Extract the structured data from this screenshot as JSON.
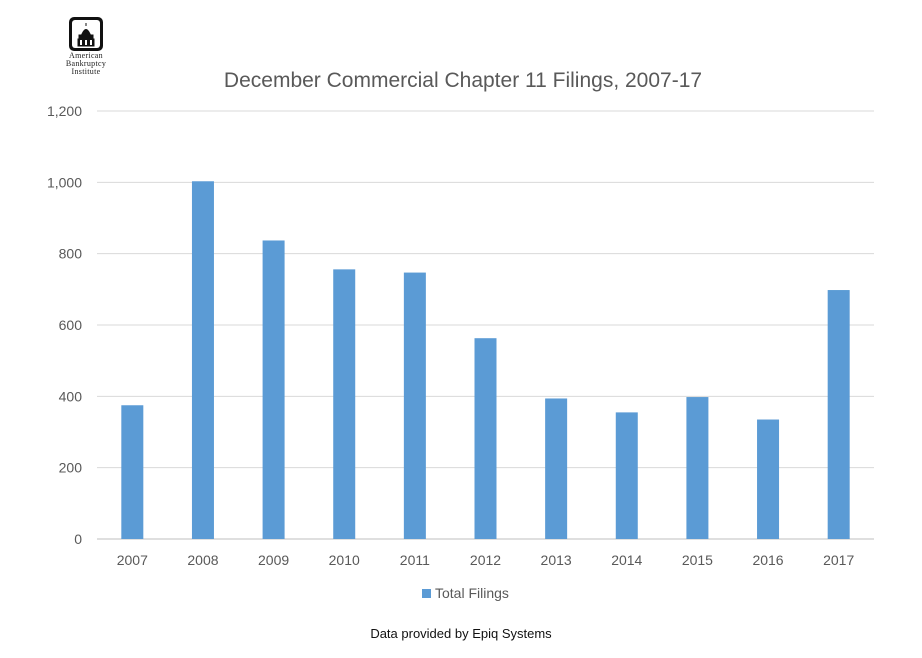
{
  "logo": {
    "lines": [
      "American",
      "Bankruptcy",
      "Institute"
    ],
    "icon": "capitol-dome-icon"
  },
  "footer": "Data provided by Epiq Systems",
  "chart_data": {
    "type": "bar",
    "title": "December Commercial Chapter 11 Filings, 2007-17",
    "xlabel": "",
    "ylabel": "",
    "categories": [
      "2007",
      "2008",
      "2009",
      "2010",
      "2011",
      "2012",
      "2013",
      "2014",
      "2015",
      "2016",
      "2017"
    ],
    "series": [
      {
        "name": "Total Filings",
        "color": "#5B9BD5",
        "values": [
          375,
          1003,
          837,
          756,
          747,
          563,
          394,
          355,
          398,
          335,
          698
        ]
      }
    ],
    "ylim": [
      0,
      1200
    ],
    "yticks": [
      0,
      200,
      400,
      600,
      800,
      1000,
      1200
    ],
    "ytick_labels": [
      "0",
      "200",
      "400",
      "600",
      "800",
      "1,000",
      "1,200"
    ],
    "grid": true,
    "legend_position": "bottom"
  }
}
